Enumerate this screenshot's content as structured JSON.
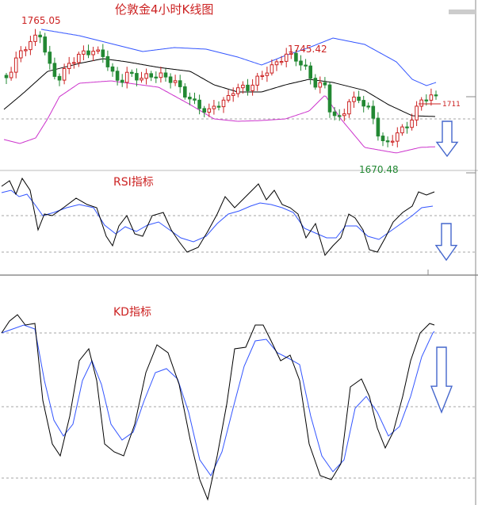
{
  "title": "伦敦金4小时K线图",
  "colors": {
    "background": "#ffffff",
    "price_line": "#000000",
    "bollinger_upper": "#3355ff",
    "bollinger_lower": "#cc33cc",
    "up_candle": "#cc2222",
    "down_candle": "#228833",
    "indicator_fast": "#000000",
    "indicator_slow": "#3355ff",
    "arrow": "#4466cc",
    "grid_dashed": "#888888",
    "panel_divider": "#555555",
    "label_red": "#cc2222",
    "label_green": "#228833"
  },
  "chart_data": [
    {
      "panel": "price",
      "type": "candlestick",
      "title": "伦敦金4小时K线图",
      "annotations": [
        {
          "text": "1765.05",
          "value": 1765.05,
          "color": "red",
          "kind": "high"
        },
        {
          "text": "1745.42",
          "value": 1745.42,
          "color": "red",
          "kind": "high"
        },
        {
          "text": "1670.48",
          "value": 1670.48,
          "color": "green",
          "kind": "low"
        },
        {
          "text": "1711",
          "value": 1711,
          "color": "red",
          "kind": "current_price"
        }
      ],
      "ylim": [
        1660,
        1770
      ],
      "overlays": [
        "bollinger_upper",
        "bollinger_middle",
        "bollinger_lower"
      ],
      "trend_arrow": "down",
      "grid": "dashed"
    },
    {
      "panel": "rsi",
      "type": "line",
      "title": "RSI指标",
      "ylim": [
        0,
        100
      ],
      "trend_arrow": "down",
      "grid": "dashed"
    },
    {
      "panel": "kd",
      "type": "line",
      "title": "KD指标",
      "ylim": [
        0,
        100
      ],
      "trend_arrow": "down",
      "grid": "dashed"
    }
  ]
}
